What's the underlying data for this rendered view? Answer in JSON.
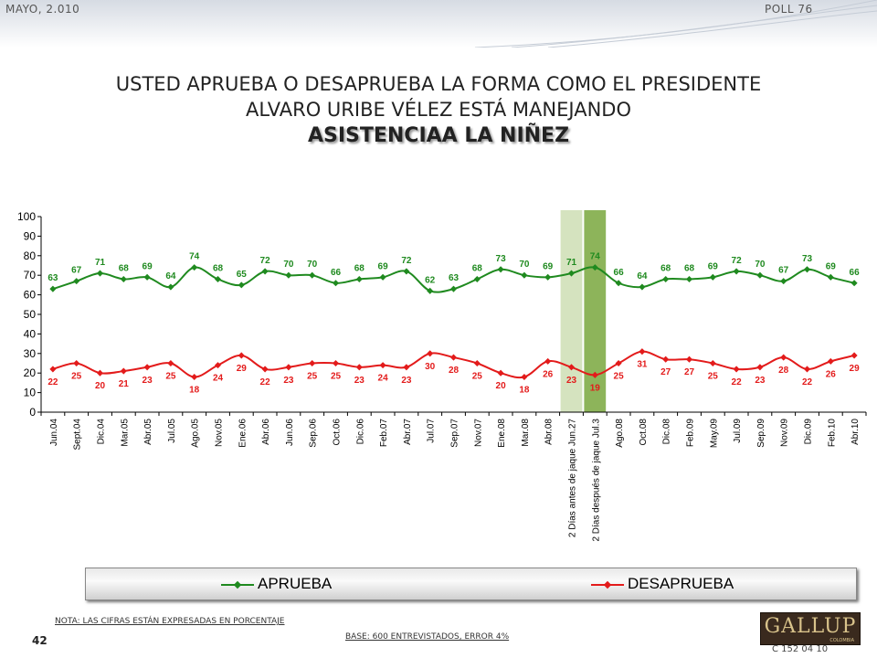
{
  "header": {
    "date": "MAYO, 2.010",
    "poll": "POLL 76"
  },
  "title": {
    "line1": "USTED APRUEBA O DESAPRUEBA LA FORMA COMO EL PRESIDENTE",
    "line2": "ALVARO URIBE VÉLEZ ESTÁ MANEJANDO",
    "line3": "ASISTENCIAA LA NIÑEZ"
  },
  "legend": {
    "approve": "APRUEBA",
    "disapprove": "DESAPRUEBA"
  },
  "footer": {
    "note": "NOTA: LAS CIFRAS ESTÁN EXPRESADAS EN PORCENTAJE",
    "page": "42",
    "base": "BASE: 600 ENTREVISTADOS, ERROR 4%",
    "logo": "GALLUP",
    "logo_sub": "COLOMBIA",
    "code": "C 152 04 10"
  },
  "colors": {
    "approve": "#1f8a1f",
    "disapprove": "#e31b1b",
    "highlight_light": "#d5e3bf",
    "highlight_dark": "#8db45a"
  },
  "chart_data": {
    "type": "line",
    "ylim": [
      0,
      100
    ],
    "yticks": [
      0,
      10,
      20,
      30,
      40,
      50,
      60,
      70,
      80,
      90,
      100
    ],
    "grid": false,
    "legend_position": "bottom",
    "highlighted_categories": [
      "2 Días antes de jaque Jun.27",
      "2 Días después de jaque Jul.3"
    ],
    "categories": [
      "Jun.04",
      "Sept.04",
      "Dic.04",
      "Mar.05",
      "Abr.05",
      "Jul.05",
      "Ago.05",
      "Nov.05",
      "Ene.06",
      "Abr.06",
      "Jun.06",
      "Sep.06",
      "Oct.06",
      "Dic.06",
      "Feb.07",
      "Abr.07",
      "Jul.07",
      "Sep.07",
      "Nov.07",
      "Ene.08",
      "Mar.08",
      "Abr.08",
      "2 Días antes de jaque Jun.27",
      "2 Días después de jaque Jul.3",
      "Ago.08",
      "Oct.08",
      "Dic.08",
      "Feb.09",
      "May.09",
      "Jul.09",
      "Sep.09",
      "Nov.09",
      "Dic.09",
      "Feb.10",
      "Abr.10"
    ],
    "series": [
      {
        "name": "APRUEBA",
        "values": [
          63,
          67,
          71,
          68,
          69,
          64,
          74,
          68,
          65,
          72,
          70,
          70,
          66,
          68,
          69,
          72,
          62,
          63,
          68,
          73,
          70,
          69,
          71,
          74,
          66,
          64,
          68,
          68,
          69,
          72,
          70,
          67,
          73,
          69,
          66
        ]
      },
      {
        "name": "DESAPRUEBA",
        "values": [
          22,
          25,
          20,
          21,
          23,
          25,
          18,
          24,
          29,
          22,
          23,
          25,
          25,
          23,
          24,
          23,
          30,
          28,
          25,
          20,
          18,
          26,
          23,
          19,
          25,
          31,
          27,
          27,
          25,
          22,
          23,
          28,
          22,
          26,
          29
        ]
      }
    ]
  }
}
